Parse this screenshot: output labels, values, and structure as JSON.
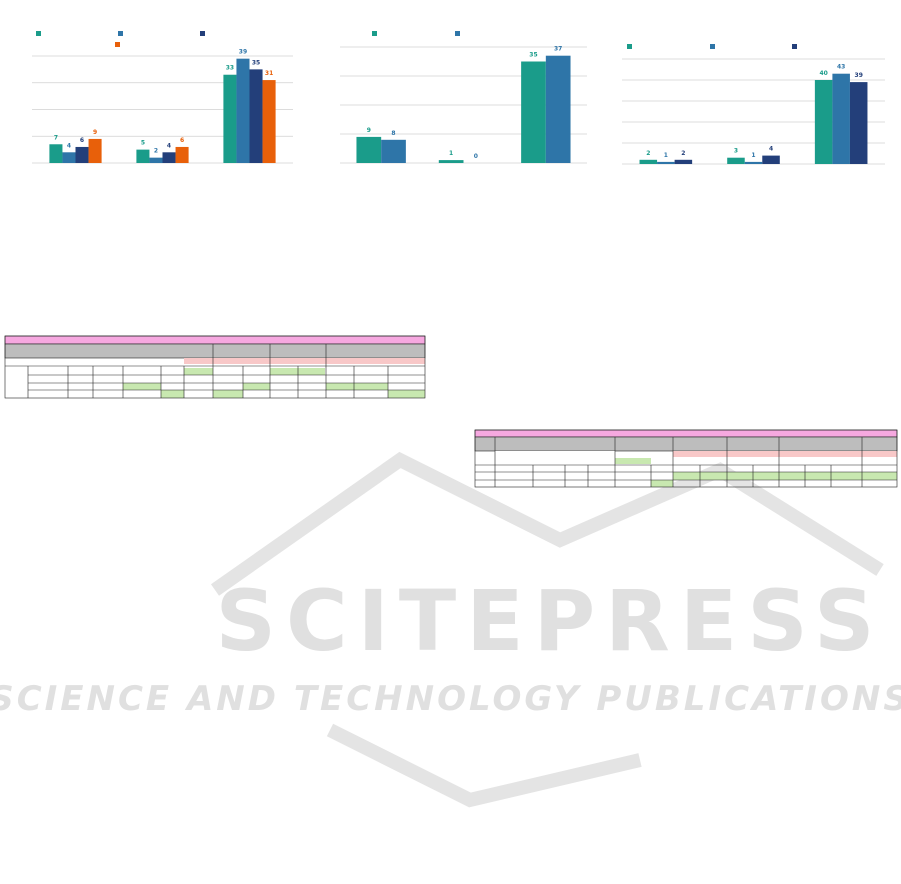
{
  "chart_data": [
    {
      "type": "bar",
      "categories": [
        null,
        null,
        null
      ],
      "series": [
        {
          "color": "#1a9c8a",
          "values": [
            7,
            5,
            33
          ]
        },
        {
          "color": "#2e75a8",
          "values": [
            4,
            2,
            39
          ]
        },
        {
          "color": "#233f7a",
          "values": [
            6,
            4,
            35
          ]
        },
        {
          "color": "#e8600a",
          "values": [
            9,
            6,
            31
          ]
        }
      ],
      "ylim": [
        0,
        40
      ],
      "yticks": [
        0,
        10,
        20,
        30,
        40
      ],
      "grid": true
    },
    {
      "type": "bar",
      "categories": [
        null,
        null,
        null
      ],
      "series": [
        {
          "color": "#1a9c8a",
          "values": [
            9,
            1,
            35
          ]
        },
        {
          "color": "#2e75a8",
          "values": [
            8,
            0,
            37
          ]
        }
      ],
      "ylim": [
        0,
        40
      ],
      "yticks": [
        0,
        10,
        20,
        30,
        40
      ],
      "grid": true
    },
    {
      "type": "bar",
      "categories": [
        null,
        null,
        null
      ],
      "series": [
        {
          "color": "#1a9c8a",
          "values": [
            2,
            3,
            40
          ]
        },
        {
          "color": "#2e75a8",
          "values": [
            1,
            1,
            43
          ]
        },
        {
          "color": "#233f7a",
          "values": [
            2,
            4,
            39
          ]
        }
      ],
      "ylim": [
        0,
        50
      ],
      "yticks": [
        0,
        10,
        20,
        30,
        40,
        50
      ],
      "grid": true
    }
  ],
  "watermark": {
    "title": "SCITEPRESS",
    "subtitle": "SCIENCE AND TECHNOLOGY PUBLICATIONS"
  }
}
